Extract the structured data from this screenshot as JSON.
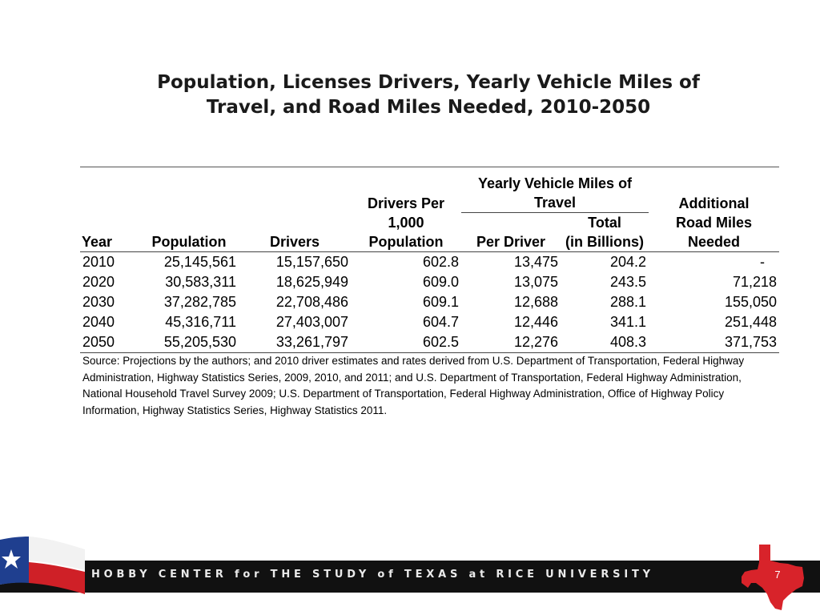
{
  "title": {
    "line1": "Population, Licenses Drivers, Yearly Vehicle Miles of",
    "line2": "Travel, and Road Miles Needed, 2010-2050"
  },
  "table": {
    "headers": {
      "year": "Year",
      "population": "Population",
      "drivers": "Drivers",
      "drivers_per_1": "Drivers Per",
      "drivers_per_2": "1,000",
      "drivers_per_3": "Population",
      "vmt_group_1": "Yearly Vehicle Miles of",
      "vmt_group_2": "Travel",
      "per_driver": "Per Driver",
      "total_1": "Total",
      "total_2": "(in Billions)",
      "road_1": "Additional",
      "road_2": "Road Miles",
      "road_3": "Needed"
    },
    "rows": [
      {
        "year": "2010",
        "population": "25,145,561",
        "drivers": "15,157,650",
        "per1000": "602.8",
        "per_driver": "13,475",
        "total": "204.2",
        "road": "-"
      },
      {
        "year": "2020",
        "population": "30,583,311",
        "drivers": "18,625,949",
        "per1000": "609.0",
        "per_driver": "13,075",
        "total": "243.5",
        "road": "71,218"
      },
      {
        "year": "2030",
        "population": "37,282,785",
        "drivers": "22,708,486",
        "per1000": "609.1",
        "per_driver": "12,688",
        "total": "288.1",
        "road": "155,050"
      },
      {
        "year": "2040",
        "population": "45,316,711",
        "drivers": "27,403,007",
        "per1000": "604.7",
        "per_driver": "12,446",
        "total": "341.1",
        "road": "251,448"
      },
      {
        "year": "2050",
        "population": "55,205,530",
        "drivers": "33,261,797",
        "per1000": "602.5",
        "per_driver": "12,276",
        "total": "408.3",
        "road": "371,753"
      }
    ]
  },
  "source": "Source: Projections by the authors; and 2010 driver estimates and rates derived from U.S. Department of Transportation, Federal Highway Administration, Highway Statistics Series, 2009, 2010, and 2011; and U.S. Department of Transportation, Federal Highway Administration, National Household Travel Survey 2009; U.S. Department of Transportation, Federal Highway Administration, Office of Highway Policy Information, Highway Statistics Series, Highway Statistics 2011.",
  "footer": {
    "org": "HOBBY CENTER for THE STUDY of TEXAS at RICE UNIVERSITY",
    "page_number": "7"
  },
  "icons": {
    "flag": "texas-flag-icon",
    "state": "texas-state-icon"
  },
  "colors": {
    "footer_band": "#111111",
    "texas_red": "#d8232a",
    "flag_blue": "#1f3f8f"
  }
}
